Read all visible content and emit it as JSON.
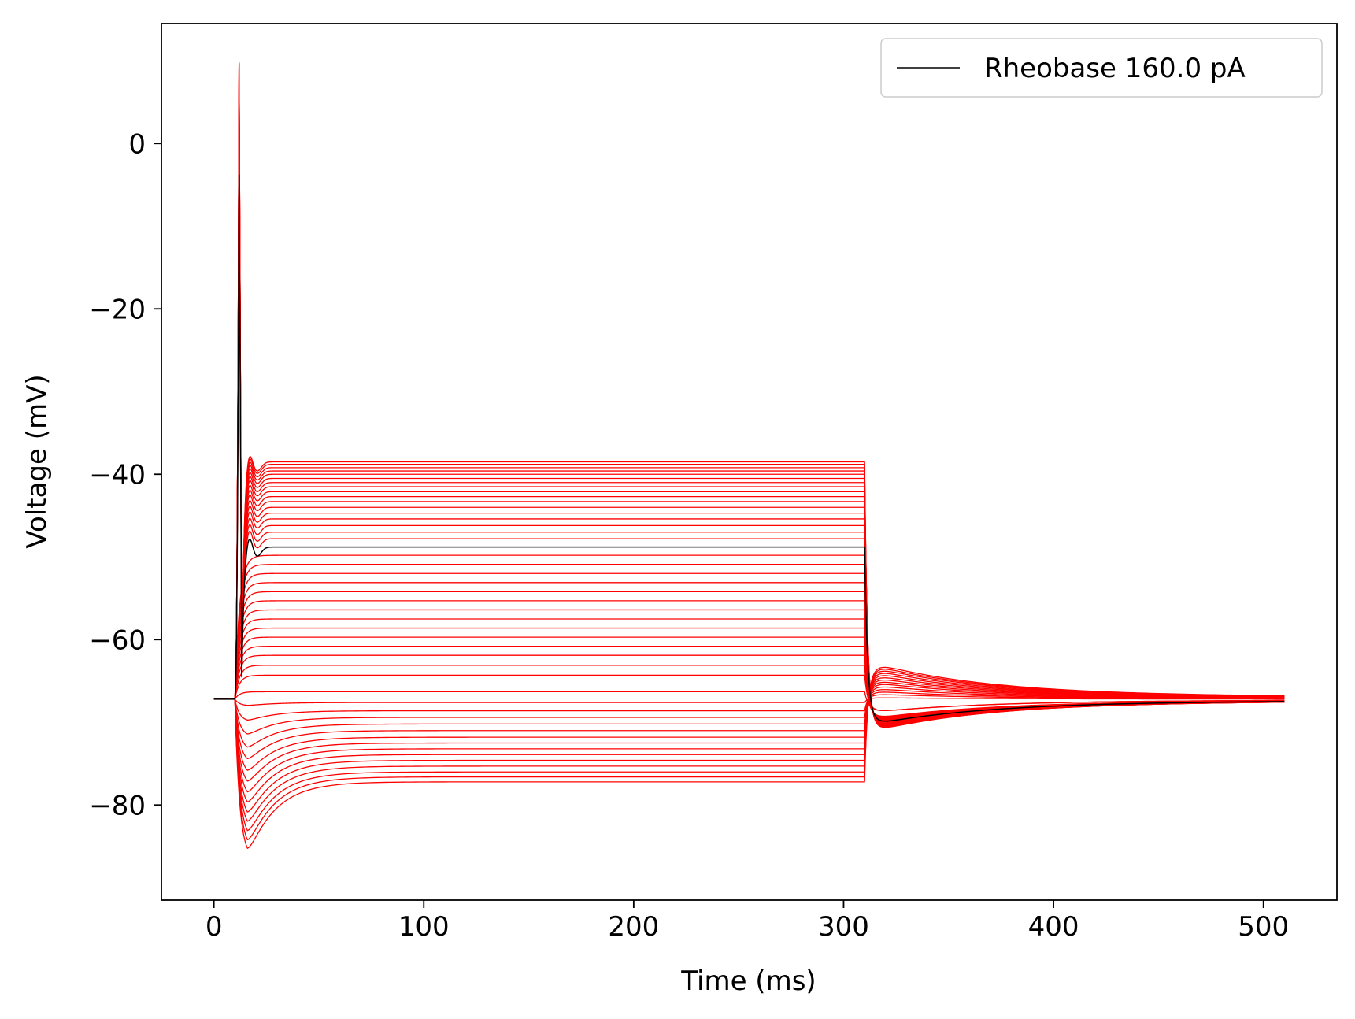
{
  "chart_data": {
    "type": "line",
    "xlabel": "Time (ms)",
    "ylabel": "Voltage (mV)",
    "xlim": [
      -25,
      535
    ],
    "ylim": [
      -91.5,
      14.5
    ],
    "xticks": [
      0,
      100,
      200,
      300,
      400,
      500
    ],
    "yticks": [
      0,
      -20,
      -40,
      -60,
      -80
    ],
    "xtick_labels": [
      "0",
      "100",
      "200",
      "300",
      "400",
      "500"
    ],
    "ytick_labels": [
      "0",
      "−20",
      "−40",
      "−60",
      "−80"
    ],
    "grid": false,
    "legend": {
      "placement": "top-right",
      "entries": [
        {
          "label": "Rheobase 160.0 pA",
          "color": "#000000"
        }
      ]
    },
    "stimulus": {
      "onset_ms": 10,
      "offset_ms": 310,
      "end_ms": 510,
      "rest_mv": -67.2
    },
    "series_color_red": "#ff0000",
    "series_color_black": "#000000",
    "series": [
      {
        "name": "",
        "color": "#ff0000",
        "plateau_mv": -77.2,
        "sag_min_mv": -86.5
      },
      {
        "name": "",
        "color": "#ff0000",
        "plateau_mv": -76.6,
        "sag_min_mv": -85.4
      },
      {
        "name": "",
        "color": "#ff0000",
        "plateau_mv": -76.0,
        "sag_min_mv": -84.2
      },
      {
        "name": "",
        "color": "#ff0000",
        "plateau_mv": -75.3,
        "sag_min_mv": -83.0
      },
      {
        "name": "",
        "color": "#ff0000",
        "plateau_mv": -74.6,
        "sag_min_mv": -81.8
      },
      {
        "name": "",
        "color": "#ff0000",
        "plateau_mv": -73.9,
        "sag_min_mv": -80.5
      },
      {
        "name": "",
        "color": "#ff0000",
        "plateau_mv": -73.2,
        "sag_min_mv": -79.2
      },
      {
        "name": "",
        "color": "#ff0000",
        "plateau_mv": -72.5,
        "sag_min_mv": -77.8
      },
      {
        "name": "",
        "color": "#ff0000",
        "plateau_mv": -71.8,
        "sag_min_mv": -76.4
      },
      {
        "name": "",
        "color": "#ff0000",
        "plateau_mv": -71.0,
        "sag_min_mv": -74.9
      },
      {
        "name": "",
        "color": "#ff0000",
        "plateau_mv": -70.2,
        "sag_min_mv": -73.4
      },
      {
        "name": "",
        "color": "#ff0000",
        "plateau_mv": -69.4,
        "sag_min_mv": -71.7
      },
      {
        "name": "",
        "color": "#ff0000",
        "plateau_mv": -68.6,
        "sag_min_mv": -69.9
      },
      {
        "name": "",
        "color": "#ff0000",
        "plateau_mv": -67.6,
        "sag_min_mv": -68.0
      },
      {
        "name": "",
        "color": "#ff0000",
        "plateau_mv": -66.3,
        "sag_min_mv": -66.3
      },
      {
        "name": "",
        "color": "#ff0000",
        "plateau_mv": -64.3
      },
      {
        "name": "",
        "color": "#ff0000",
        "plateau_mv": -63.1
      },
      {
        "name": "",
        "color": "#ff0000",
        "plateau_mv": -61.9
      },
      {
        "name": "",
        "color": "#ff0000",
        "plateau_mv": -60.8
      },
      {
        "name": "",
        "color": "#ff0000",
        "plateau_mv": -59.7
      },
      {
        "name": "",
        "color": "#ff0000",
        "plateau_mv": -58.6
      },
      {
        "name": "",
        "color": "#ff0000",
        "plateau_mv": -57.5
      },
      {
        "name": "",
        "color": "#ff0000",
        "plateau_mv": -56.4
      },
      {
        "name": "",
        "color": "#ff0000",
        "plateau_mv": -55.3
      },
      {
        "name": "",
        "color": "#ff0000",
        "plateau_mv": -54.2
      },
      {
        "name": "",
        "color": "#ff0000",
        "plateau_mv": -53.1
      },
      {
        "name": "",
        "color": "#ff0000",
        "plateau_mv": -52.0
      },
      {
        "name": "",
        "color": "#ff0000",
        "plateau_mv": -50.9
      },
      {
        "name": "",
        "color": "#ff0000",
        "plateau_mv": -49.8
      },
      {
        "name": "Rheobase 160.0 pA",
        "color": "#000000",
        "plateau_mv": -48.8,
        "spike_peak_mv": -3.8,
        "rebound_min_mv": -70.1
      },
      {
        "name": "",
        "color": "#ff0000",
        "plateau_mv": -47.8,
        "spike_peak_mv": -2.0
      },
      {
        "name": "",
        "color": "#ff0000",
        "plateau_mv": -47.0,
        "spike_peak_mv": 0.0
      },
      {
        "name": "",
        "color": "#ff0000",
        "plateau_mv": -46.2,
        "spike_peak_mv": 1.5
      },
      {
        "name": "",
        "color": "#ff0000",
        "plateau_mv": -45.4,
        "spike_peak_mv": 3.0
      },
      {
        "name": "",
        "color": "#ff0000",
        "plateau_mv": -44.7,
        "spike_peak_mv": 4.2
      },
      {
        "name": "",
        "color": "#ff0000",
        "plateau_mv": -44.0,
        "spike_peak_mv": 5.2
      },
      {
        "name": "",
        "color": "#ff0000",
        "plateau_mv": -43.3,
        "spike_peak_mv": 6.0
      },
      {
        "name": "",
        "color": "#ff0000",
        "plateau_mv": -42.7,
        "spike_peak_mv": 6.8
      },
      {
        "name": "",
        "color": "#ff0000",
        "plateau_mv": -42.1,
        "spike_peak_mv": 7.4
      },
      {
        "name": "",
        "color": "#ff0000",
        "plateau_mv": -41.5,
        "spike_peak_mv": 8.0
      },
      {
        "name": "",
        "color": "#ff0000",
        "plateau_mv": -41.0,
        "spike_peak_mv": 8.5
      },
      {
        "name": "",
        "color": "#ff0000",
        "plateau_mv": -40.5,
        "spike_peak_mv": 8.9
      },
      {
        "name": "",
        "color": "#ff0000",
        "plateau_mv": -40.0,
        "spike_peak_mv": 9.2
      },
      {
        "name": "",
        "color": "#ff0000",
        "plateau_mv": -39.6,
        "spike_peak_mv": 9.4
      },
      {
        "name": "",
        "color": "#ff0000",
        "plateau_mv": -39.2,
        "spike_peak_mv": 9.6
      },
      {
        "name": "",
        "color": "#ff0000",
        "plateau_mv": -38.8,
        "spike_peak_mv": 9.7
      },
      {
        "name": "",
        "color": "#ff0000",
        "plateau_mv": -38.5,
        "spike_peak_mv": 9.8
      }
    ]
  }
}
